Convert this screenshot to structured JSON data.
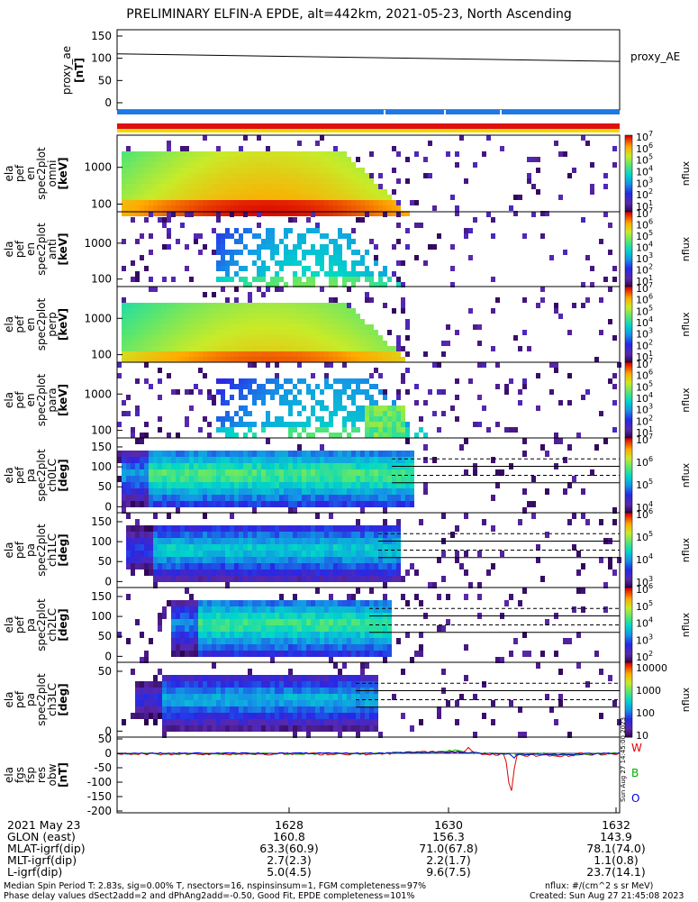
{
  "title": "PRELIMINARY ELFIN-A EPDE, alt=442km, 2021-05-23, North Ascending",
  "chart_data": [
    {
      "type": "line",
      "name": "proxy_ae",
      "ylabel": [
        "proxy_ae",
        "[nT]"
      ],
      "series_label": "proxy_AE",
      "ylim": [
        0,
        150
      ],
      "yticks": [
        "150",
        "100",
        "50",
        "0"
      ],
      "x": [
        "16:27:00",
        "16:32:30"
      ],
      "values": [
        110,
        93
      ]
    },
    {
      "type": "heatmap",
      "name": "ela_pef_en_spec2plot_omni",
      "ylabel": [
        "ela",
        "pef",
        "en",
        "spec2plot",
        "omni",
        "[keV]"
      ],
      "yticks": [
        "1000",
        "100"
      ],
      "scale": "log",
      "zlabel": "nflux",
      "zticks": [
        "10^7",
        "10^6",
        "10^5",
        "10^4",
        "10^3",
        "10^2",
        "10^1"
      ]
    },
    {
      "type": "heatmap",
      "name": "ela_pef_en_spec2plot_anti",
      "ylabel": [
        "ela",
        "pef",
        "en",
        "spec2plot",
        "anti",
        "[keV]"
      ],
      "yticks": [
        "1000",
        "100"
      ],
      "scale": "log",
      "zlabel": "nflux",
      "zticks": [
        "10^7",
        "10^6",
        "10^5",
        "10^4",
        "10^3",
        "10^2",
        "10^1"
      ]
    },
    {
      "type": "heatmap",
      "name": "ela_pef_en_spec2plot_perp",
      "ylabel": [
        "ela",
        "pef",
        "en",
        "spec2plot",
        "perp",
        "[keV]"
      ],
      "yticks": [
        "1000",
        "100"
      ],
      "scale": "log",
      "zlabel": "nflux",
      "zticks": [
        "10^7",
        "10^6",
        "10^5",
        "10^4",
        "10^3",
        "10^2",
        "10^1"
      ]
    },
    {
      "type": "heatmap",
      "name": "ela_pef_en_spec2plot_para",
      "ylabel": [
        "ela",
        "pef",
        "en",
        "spec2plot",
        "para",
        "[keV]"
      ],
      "yticks": [
        "1000",
        "100"
      ],
      "scale": "log",
      "zlabel": "nflux",
      "zticks": [
        "10^7",
        "10^6",
        "10^5",
        "10^4",
        "10^3",
        "10^2",
        "10^1"
      ]
    },
    {
      "type": "heatmap",
      "name": "ela_pef_pa_spec2plot_ch0LC",
      "ylabel": [
        "ela",
        "pef",
        "pa",
        "spec2plot",
        "ch0LC",
        "[deg]"
      ],
      "yticks": [
        "150",
        "100",
        "50",
        "0"
      ],
      "zlabel": "nflux",
      "zticks": [
        "10^7",
        "10^6",
        "10^5",
        "10^4"
      ]
    },
    {
      "type": "heatmap",
      "name": "ela_pef_pa_spec2plot_ch1LC",
      "ylabel": [
        "ela",
        "pef",
        "pa",
        "spec2plot",
        "ch1LC",
        "[deg]"
      ],
      "yticks": [
        "150",
        "100",
        "50",
        "0"
      ],
      "zlabel": "nflux",
      "zticks": [
        "10^6",
        "10^5",
        "10^4",
        "10^3"
      ]
    },
    {
      "type": "heatmap",
      "name": "ela_pef_pa_spec2plot_ch2LC",
      "ylabel": [
        "ela",
        "pef",
        "pa",
        "spec2plot",
        "ch2LC",
        "[deg]"
      ],
      "yticks": [
        "150",
        "100",
        "50",
        "0"
      ],
      "zlabel": "nflux",
      "zticks": [
        "10^6",
        "10^5",
        "10^4",
        "10^3",
        "10^2"
      ]
    },
    {
      "type": "heatmap",
      "name": "ela_pef_pa_spec2plot_ch3LC",
      "ylabel": [
        "ela",
        "pef",
        "pa",
        "spec2plot",
        "ch3LC",
        "[deg]"
      ],
      "yticks": [
        "50",
        "0"
      ],
      "zlabel": "nflux",
      "zticks": [
        "10000",
        "1000",
        "100",
        "10"
      ]
    },
    {
      "type": "line",
      "name": "ela_fgs_fsp_res_obw",
      "ylabel": [
        "ela",
        "fgs",
        "fsp",
        "res",
        "obw",
        "[nT]"
      ],
      "yticks": [
        "50",
        "0",
        "-50",
        "-100",
        "-150",
        "-200"
      ],
      "ylim": [
        -200,
        50
      ],
      "legend": [
        "W",
        "B",
        "O"
      ],
      "colors": [
        "#e00000",
        "#00b000",
        "#0000e0"
      ],
      "annotation": "Sun Aug 27 14:45:00 2023"
    }
  ],
  "xaxis": {
    "ticks": [
      "1628",
      "1630",
      "1632"
    ],
    "rows": [
      {
        "label": "2021 May 23",
        "values": [
          "",
          "",
          ""
        ]
      },
      {
        "label": "GLON (east)",
        "values": [
          "160.8",
          "156.3",
          "143.9"
        ]
      },
      {
        "label": "MLAT-igrf(dip)",
        "values": [
          "63.3(60.9)",
          "71.0(67.8)",
          "78.1(74.0)"
        ]
      },
      {
        "label": "MLT-igrf(dip)",
        "values": [
          "2.7(2.3)",
          "2.2(1.7)",
          "1.1(0.8)"
        ]
      },
      {
        "label": "L-igrf(dip)",
        "values": [
          "5.0(4.5)",
          "9.6(7.5)",
          "23.7(14.1)"
        ]
      }
    ]
  },
  "footer": {
    "line1": "Median Spin Period T: 2.83s, sig=0.00% T, nsectors=16, nspinsinsum=1, FGM completeness=97%",
    "line2": "Phase delay values dSect2add=2 and dPhAng2add=-0.50, Good Fit, EPDE completeness=101%",
    "right1": "nflux: #/(cm^2 s sr MeV)",
    "right2": "Created: Sun Aug 27 21:45:08 2023"
  },
  "colors": {
    "bar_blue": "#1e78e6",
    "bar_red": "#e01010",
    "bar_yellow": "#f5d800"
  }
}
